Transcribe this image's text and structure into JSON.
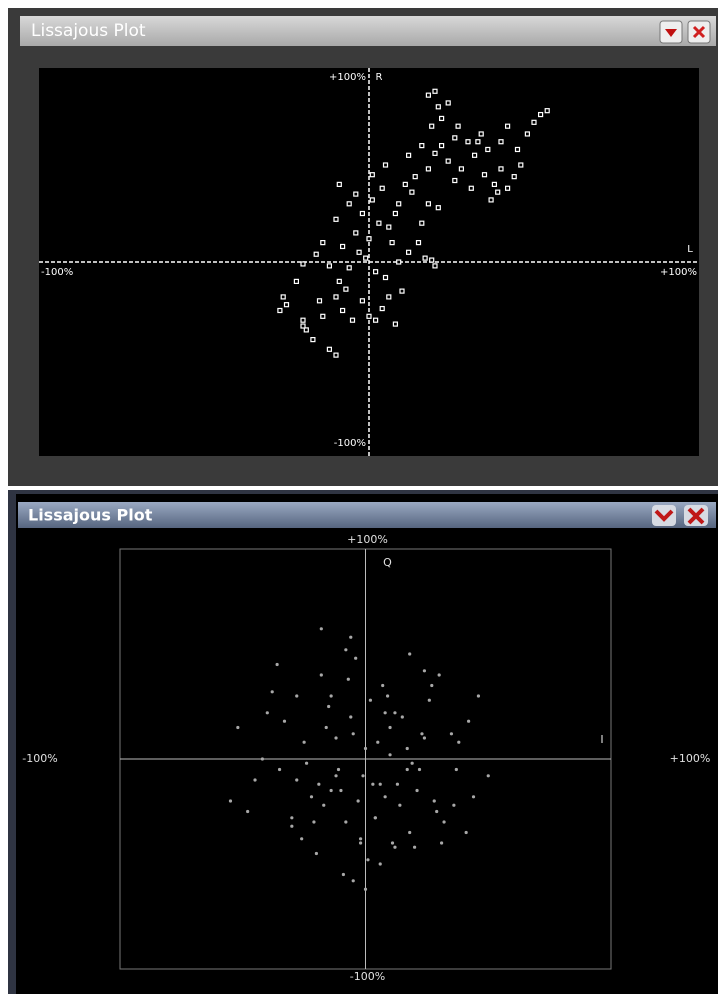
{
  "windows": [
    {
      "title": "Lissajous Plot"
    },
    {
      "title": "Lissajous Plot"
    }
  ],
  "chart_data": [
    {
      "type": "scatter",
      "x_label": "L",
      "y_label": "R",
      "xlim": [
        -100,
        100
      ],
      "ylim": [
        -100,
        100
      ],
      "xticks": [
        {
          "value": -100,
          "label": "-100%"
        },
        {
          "value": 100,
          "label": "+100%"
        }
      ],
      "yticks": [
        {
          "value": -100,
          "label": "-100%"
        },
        {
          "value": 100,
          "label": "+100%"
        }
      ],
      "color": "#ffffff",
      "x": [
        -25,
        -26,
        -20,
        -19,
        -17,
        -20,
        -14,
        -12,
        -10,
        -15,
        -9,
        -8,
        -5,
        -2,
        0,
        2,
        4,
        6,
        8,
        10,
        -6,
        -12,
        -20,
        -3,
        -8,
        -14,
        -16,
        -4,
        0,
        3,
        6,
        8,
        -2,
        -6,
        -10,
        -4,
        1,
        4,
        9,
        11,
        13,
        15,
        17,
        19,
        12,
        20,
        -1,
        2,
        5,
        -7,
        16,
        18,
        21,
        14,
        18,
        20,
        22,
        24,
        26,
        12,
        16,
        19,
        21,
        24,
        22,
        27,
        30,
        32,
        34,
        36,
        35,
        38,
        40,
        42,
        37,
        39,
        44,
        46,
        48,
        40,
        42,
        50,
        52,
        54,
        45,
        28,
        31,
        33,
        26,
        18,
        20,
        -10,
        -22,
        -27,
        9,
        7,
        1,
        -9,
        5
      ],
      "y": [
        -22,
        -18,
        -30,
        -35,
        -40,
        -33,
        -28,
        -45,
        -48,
        -20,
        -10,
        -25,
        -30,
        -20,
        -28,
        -30,
        -24,
        -18,
        -32,
        -15,
        -3,
        -2,
        -1,
        5,
        8,
        10,
        4,
        15,
        12,
        20,
        18,
        25,
        25,
        30,
        22,
        35,
        32,
        38,
        30,
        40,
        36,
        10,
        2,
        1,
        5,
        -2,
        2,
        -5,
        -8,
        -14,
        20,
        30,
        28,
        44,
        48,
        56,
        60,
        52,
        42,
        55,
        60,
        70,
        80,
        82,
        74,
        70,
        62,
        55,
        66,
        58,
        45,
        40,
        48,
        38,
        32,
        36,
        44,
        50,
        66,
        62,
        70,
        72,
        76,
        78,
        58,
        48,
        38,
        62,
        64,
        86,
        88,
        -18,
        -10,
        -25,
        0,
        10,
        45,
        40,
        50
      ]
    },
    {
      "type": "scatter",
      "x_label": "I",
      "y_label": "Q",
      "xlim": [
        -100,
        100
      ],
      "ylim": [
        -100,
        100
      ],
      "xticks": [
        {
          "value": -100,
          "label": "-100%"
        },
        {
          "value": 100,
          "label": "+100%"
        }
      ],
      "yticks": [
        {
          "value": -100,
          "label": "-100%"
        },
        {
          "value": 100,
          "label": "+100%"
        }
      ],
      "color": "#a8a8a8",
      "x": [
        -52,
        -40,
        -35,
        -28,
        -22,
        -18,
        -12,
        -8,
        -4,
        0,
        3,
        7,
        11,
        15,
        19,
        24,
        29,
        35,
        41,
        46,
        50,
        -45,
        -38,
        -30,
        -25,
        -20,
        -15,
        -10,
        -6,
        -2,
        2,
        6,
        10,
        14,
        18,
        22,
        27,
        32,
        38,
        44,
        -48,
        -42,
        -33,
        -26,
        -19,
        -14,
        -9,
        -5,
        -1,
        4,
        8,
        12,
        17,
        21,
        26,
        31,
        36,
        42,
        -36,
        -28,
        -21,
        -16,
        -11,
        -7,
        -3,
        1,
        5,
        9,
        13,
        18,
        23,
        28,
        -24,
        -17,
        -12,
        -6,
        0,
        6,
        12,
        17,
        24,
        -14,
        -8,
        -2,
        4,
        10,
        -55,
        37,
        -30,
        30,
        -5,
        20,
        -18,
        8
      ],
      "y": [
        15,
        22,
        -5,
        30,
        -18,
        40,
        10,
        -30,
        48,
        5,
        -12,
        35,
        -40,
        20,
        -2,
        42,
        -25,
        12,
        -35,
        30,
        -8,
        -10,
        32,
        -28,
        8,
        -45,
        25,
        -15,
        58,
        -38,
        28,
        -50,
        15,
        -22,
        50,
        -5,
        35,
        -30,
        8,
        -18,
        -25,
        0,
        18,
        -38,
        -12,
        30,
        -55,
        12,
        -8,
        -28,
        22,
        -42,
        5,
        -15,
        28,
        -40,
        -22,
        18,
        45,
        -10,
        -30,
        15,
        -5,
        38,
        -20,
        -48,
        8,
        30,
        -12,
        -35,
        12,
        -20,
        -2,
        -22,
        -8,
        20,
        -62,
        -12,
        22,
        -5,
        10,
        -15,
        52,
        -40,
        -28,
        2,
        -20,
        -5,
        -32,
        40,
        -58,
        -42,
        62,
        -18
      ]
    }
  ]
}
